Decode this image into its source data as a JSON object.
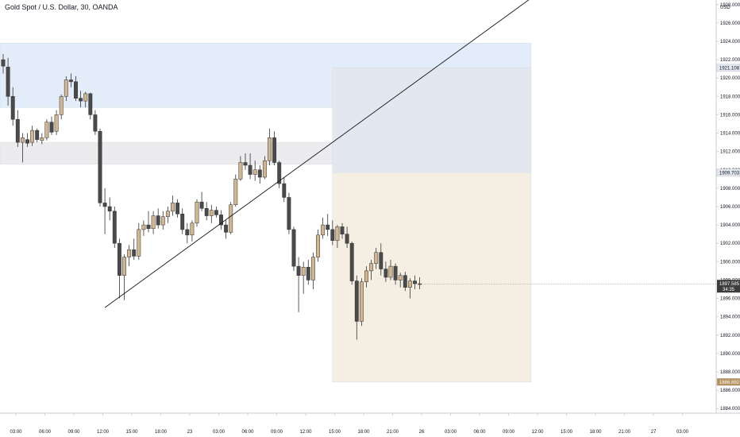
{
  "header": {
    "title": "Gold Spot / U.S. Dollar, 30, OANDA"
  },
  "colors": {
    "up": "#d1b68f",
    "down": "#4a4a4a",
    "wick": "#333333",
    "zone_blue": "#e3ecf9",
    "zone_gray": "#ececee",
    "zone_tan": "#f5efe3",
    "zone_slate": "#e3e7ef",
    "price_tag": "#3c3c3c",
    "level_tag": "#b5915c"
  },
  "chart_data": {
    "type": "candlestick",
    "title": "Gold Spot / U.S. Dollar, 30, OANDA",
    "currency": "USD",
    "x_ticks": [
      "03:00",
      "06:00",
      "09:00",
      "12:00",
      "15:00",
      "18:00",
      "23",
      "03:00",
      "06:00",
      "09:00",
      "12:00",
      "15:00",
      "18:00",
      "21:00",
      "26",
      "03:00",
      "06:00",
      "09:00",
      "12:00",
      "15:00",
      "18:00",
      "21:00",
      "27",
      "03:00"
    ],
    "y_range": [
      1883.5,
      1928.5
    ],
    "y_ticks": [
      1884,
      1886,
      1888,
      1890,
      1892,
      1894,
      1896,
      1898,
      1900,
      1902,
      1904,
      1906,
      1908,
      1910,
      1912,
      1914,
      1916,
      1918,
      1920,
      1922,
      1924,
      1926,
      1928
    ],
    "y_tick_labels": [
      "1884.000",
      "1886.000",
      "1888.000",
      "1890.000",
      "1892.000",
      "1894.000",
      "1896.000",
      "1898.000",
      "1900.000",
      "1902.000",
      "1904.000",
      "1906.000",
      "1908.000",
      "1910.000",
      "1912.000",
      "1914.000",
      "1916.000",
      "1918.000",
      "1920.000",
      "1922.000",
      "1924.000",
      "1926.000",
      "1928.000"
    ],
    "price_labels": {
      "top_level": "1921.108",
      "mid_level": "1909.703",
      "current_price": "1897.585",
      "countdown": "34:35",
      "bottom_level": "1886.892"
    },
    "levels": {
      "top_level": 1921.108,
      "mid_level": 1909.703,
      "current_price": 1897.585,
      "bottom_level": 1886.892
    },
    "zones": [
      {
        "name": "supply-zone",
        "from": 1916.8,
        "to": 1923.8,
        "start_index": 0,
        "end_index": 109,
        "color": "zone_blue"
      },
      {
        "name": "consolidation-zone",
        "from": 1910.6,
        "to": 1913.0,
        "start_index": 0,
        "end_index": 109,
        "color": "zone_gray"
      },
      {
        "name": "upper-target-zone",
        "from": 1909.7,
        "to": 1921.1,
        "start_index": 68,
        "end_index": 109,
        "color": "zone_slate"
      },
      {
        "name": "lower-target-zone",
        "from": 1886.89,
        "to": 1909.7,
        "start_index": 68,
        "end_index": 109,
        "color": "zone_tan"
      }
    ],
    "trendline": {
      "start_index": 21,
      "start_price": 1895.0,
      "end_index": 109,
      "end_price": 1928.7
    },
    "candles": [
      [
        1922.0,
        1922.6,
        1920.5,
        1921.3
      ],
      [
        1921.2,
        1922.2,
        1917.0,
        1918.0
      ],
      [
        1918.0,
        1919.0,
        1914.8,
        1915.5
      ],
      [
        1915.5,
        1916.5,
        1912.5,
        1913.0
      ],
      [
        1913.0,
        1914.0,
        1910.8,
        1913.5
      ],
      [
        1913.3,
        1914.0,
        1912.5,
        1912.9
      ],
      [
        1913.0,
        1914.8,
        1912.6,
        1914.3
      ],
      [
        1914.3,
        1914.5,
        1913.0,
        1913.3
      ],
      [
        1913.2,
        1914.0,
        1912.8,
        1913.5
      ],
      [
        1913.5,
        1915.5,
        1913.2,
        1915.2
      ],
      [
        1915.2,
        1915.8,
        1913.8,
        1914.1
      ],
      [
        1914.2,
        1916.5,
        1913.8,
        1916.0
      ],
      [
        1916.0,
        1918.2,
        1915.5,
        1918.0
      ],
      [
        1918.0,
        1920.2,
        1917.5,
        1919.8
      ],
      [
        1919.8,
        1920.5,
        1919.0,
        1919.6
      ],
      [
        1919.6,
        1920.2,
        1917.5,
        1917.8
      ],
      [
        1917.8,
        1918.6,
        1916.8,
        1917.5
      ],
      [
        1917.5,
        1918.5,
        1916.8,
        1918.3
      ],
      [
        1918.3,
        1918.4,
        1915.5,
        1916.0
      ],
      [
        1916.0,
        1916.5,
        1913.8,
        1914.2
      ],
      [
        1914.2,
        1914.5,
        1906.0,
        1906.4
      ],
      [
        1906.4,
        1908.0,
        1903.0,
        1906.0
      ],
      [
        1906.0,
        1907.0,
        1904.5,
        1905.5
      ],
      [
        1905.5,
        1906.0,
        1901.5,
        1902.0
      ],
      [
        1902.0,
        1902.5,
        1896.0,
        1898.5
      ],
      [
        1898.5,
        1900.8,
        1895.8,
        1900.5
      ],
      [
        1900.5,
        1901.8,
        1899.5,
        1901.3
      ],
      [
        1901.3,
        1902.5,
        1900.2,
        1900.6
      ],
      [
        1900.6,
        1904.2,
        1900.2,
        1903.5
      ],
      [
        1903.5,
        1904.5,
        1902.8,
        1904.0
      ],
      [
        1904.0,
        1905.5,
        1903.2,
        1903.6
      ],
      [
        1903.6,
        1905.5,
        1903.0,
        1905.0
      ],
      [
        1905.0,
        1905.8,
        1903.6,
        1904.0
      ],
      [
        1904.0,
        1905.5,
        1903.5,
        1904.9
      ],
      [
        1904.9,
        1906.0,
        1904.2,
        1905.5
      ],
      [
        1905.5,
        1907.2,
        1905.0,
        1906.4
      ],
      [
        1906.4,
        1906.8,
        1904.8,
        1905.2
      ],
      [
        1905.2,
        1905.8,
        1903.0,
        1903.5
      ],
      [
        1903.5,
        1904.2,
        1902.0,
        1902.9
      ],
      [
        1902.9,
        1904.5,
        1902.2,
        1904.2
      ],
      [
        1904.2,
        1906.8,
        1903.8,
        1906.5
      ],
      [
        1906.5,
        1907.6,
        1905.5,
        1905.8
      ],
      [
        1905.8,
        1906.5,
        1904.5,
        1905.0
      ],
      [
        1905.0,
        1906.2,
        1904.2,
        1905.6
      ],
      [
        1905.6,
        1906.0,
        1904.8,
        1905.1
      ],
      [
        1905.1,
        1905.6,
        1903.5,
        1904.0
      ],
      [
        1904.0,
        1904.5,
        1902.5,
        1903.2
      ],
      [
        1903.2,
        1906.5,
        1903.0,
        1906.2
      ],
      [
        1906.2,
        1909.5,
        1906.0,
        1909.0
      ],
      [
        1909.0,
        1911.5,
        1908.8,
        1910.8
      ],
      [
        1910.8,
        1911.8,
        1910.0,
        1910.5
      ],
      [
        1910.5,
        1911.8,
        1909.0,
        1909.5
      ],
      [
        1909.5,
        1911.0,
        1908.8,
        1910.0
      ],
      [
        1910.0,
        1910.5,
        1908.5,
        1909.2
      ],
      [
        1909.2,
        1911.5,
        1909.0,
        1911.0
      ],
      [
        1911.0,
        1914.5,
        1910.5,
        1913.5
      ],
      [
        1913.5,
        1914.2,
        1910.5,
        1910.8
      ],
      [
        1910.8,
        1911.0,
        1908.0,
        1908.5
      ],
      [
        1908.5,
        1909.2,
        1906.5,
        1907.0
      ],
      [
        1907.0,
        1907.5,
        1903.0,
        1903.5
      ],
      [
        1903.5,
        1903.8,
        1899.0,
        1899.5
      ],
      [
        1899.5,
        1900.5,
        1894.5,
        1898.5
      ],
      [
        1898.5,
        1900.0,
        1896.5,
        1899.4
      ],
      [
        1899.4,
        1900.2,
        1897.5,
        1898.0
      ],
      [
        1898.0,
        1901.0,
        1897.0,
        1900.5
      ],
      [
        1900.5,
        1903.5,
        1900.0,
        1902.9
      ],
      [
        1902.9,
        1904.8,
        1902.5,
        1904.0
      ],
      [
        1904.0,
        1905.2,
        1902.8,
        1903.5
      ],
      [
        1903.5,
        1904.5,
        1901.8,
        1902.3
      ],
      [
        1902.3,
        1904.0,
        1901.5,
        1903.8
      ],
      [
        1903.8,
        1904.2,
        1902.5,
        1903.0
      ],
      [
        1903.0,
        1903.8,
        1901.5,
        1902.0
      ],
      [
        1902.0,
        1902.2,
        1897.5,
        1897.9
      ],
      [
        1897.9,
        1898.5,
        1891.5,
        1893.5
      ],
      [
        1893.5,
        1898.2,
        1893.0,
        1897.8
      ],
      [
        1897.8,
        1899.5,
        1897.2,
        1899.0
      ],
      [
        1899.0,
        1900.2,
        1898.0,
        1899.8
      ],
      [
        1899.8,
        1901.5,
        1899.2,
        1901.0
      ],
      [
        1901.0,
        1902.0,
        1898.5,
        1899.2
      ],
      [
        1899.2,
        1900.0,
        1897.8,
        1898.3
      ],
      [
        1898.3,
        1900.2,
        1898.0,
        1899.5
      ],
      [
        1899.5,
        1899.8,
        1897.5,
        1898.0
      ],
      [
        1898.0,
        1898.8,
        1897.2,
        1898.5
      ],
      [
        1898.5,
        1898.9,
        1896.8,
        1897.2
      ],
      [
        1897.2,
        1898.2,
        1896.0,
        1897.9
      ],
      [
        1897.9,
        1898.5,
        1897.0,
        1897.6
      ],
      [
        1897.6,
        1898.3,
        1897.0,
        1897.585
      ]
    ]
  }
}
